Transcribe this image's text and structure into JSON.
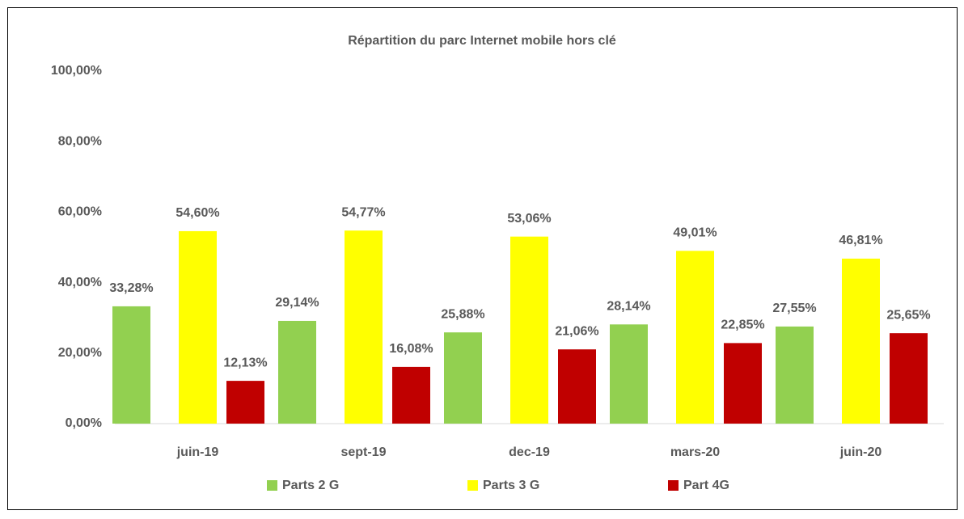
{
  "chart_data": {
    "type": "bar",
    "title": "Répartition du parc Internet mobile hors clé",
    "categories": [
      "juin-19",
      "sept-19",
      "dec-19",
      "mars-20",
      "juin-20"
    ],
    "series": [
      {
        "name": "Parts 2 G",
        "color": "#92d050",
        "values": [
          33.28,
          29.14,
          25.88,
          28.14,
          27.55
        ],
        "value_labels": [
          "33,28%",
          "29,14%",
          "25,88%",
          "28,14%",
          "27,55%"
        ]
      },
      {
        "name": "Parts 3 G",
        "color": "#ffff00",
        "values": [
          54.6,
          54.77,
          53.06,
          49.01,
          46.81
        ],
        "value_labels": [
          "54,60%",
          "54,77%",
          "53,06%",
          "49,01%",
          "46,81%"
        ]
      },
      {
        "name": "Part 4G",
        "color": "#c00000",
        "values": [
          12.13,
          16.08,
          21.06,
          22.85,
          25.65
        ],
        "value_labels": [
          "12,13%",
          "16,08%",
          "21,06%",
          "22,85%",
          "25,65%"
        ]
      }
    ],
    "ylim": [
      0,
      100
    ],
    "yticks": [
      {
        "value": 0,
        "label": "0,00%"
      },
      {
        "value": 20,
        "label": "20,00%"
      },
      {
        "value": 40,
        "label": "40,00%"
      },
      {
        "value": 60,
        "label": "60,00%"
      },
      {
        "value": 80,
        "label": "80,00%"
      },
      {
        "value": 100,
        "label": "100,00%"
      }
    ],
    "legend": "bottom"
  }
}
